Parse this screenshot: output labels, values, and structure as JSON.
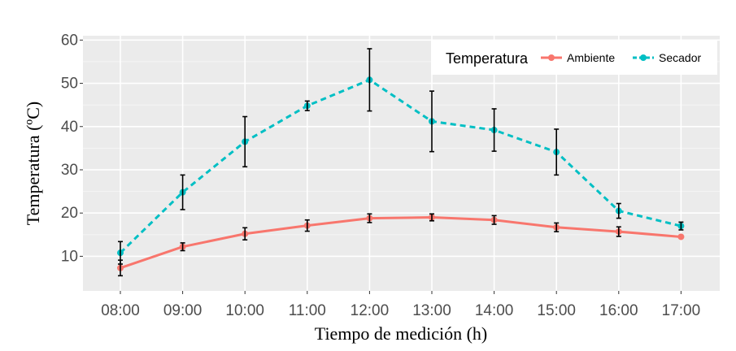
{
  "chart_data": {
    "type": "line",
    "title": "",
    "xlabel": "Tiempo de medición (h)",
    "ylabel": "Temperatura (ºC)",
    "categories": [
      "08:00",
      "09:00",
      "10:00",
      "11:00",
      "12:00",
      "13:00",
      "14:00",
      "15:00",
      "16:00",
      "17:00"
    ],
    "ylim": [
      2,
      61
    ],
    "yticks": [
      10,
      20,
      30,
      40,
      50,
      60
    ],
    "grid": true,
    "legend": {
      "title": "Temperatura",
      "position": "top-right"
    },
    "series": [
      {
        "name": "Ambiente",
        "color": "#f8766d",
        "line_style": "solid",
        "values": [
          7.3,
          12.2,
          15.2,
          17.1,
          18.8,
          19.0,
          18.4,
          16.7,
          15.7,
          14.5
        ],
        "error": [
          1.8,
          0.9,
          1.4,
          1.3,
          1.0,
          0.8,
          1.0,
          1.0,
          1.1,
          0.0
        ]
      },
      {
        "name": "Secador",
        "color": "#00bfc4",
        "line_style": "dashed",
        "values": [
          10.8,
          24.8,
          36.5,
          44.8,
          50.8,
          41.2,
          39.2,
          34.1,
          20.5,
          17.0
        ],
        "error": [
          2.6,
          4.0,
          5.8,
          1.1,
          7.2,
          7.0,
          4.9,
          5.3,
          1.7,
          0.9
        ]
      }
    ]
  }
}
